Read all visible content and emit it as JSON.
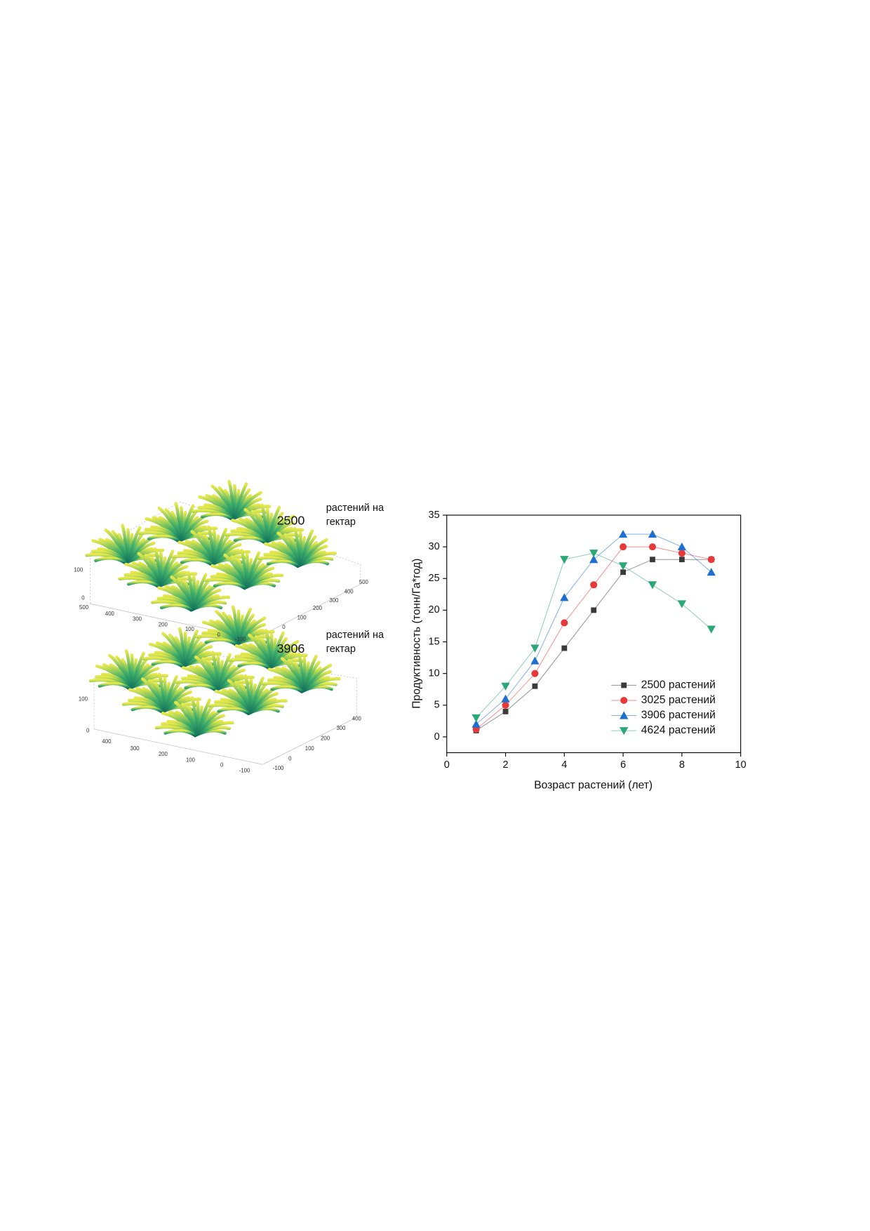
{
  "panels": [
    {
      "density": "2500",
      "label": [
        "растений на",
        "гектар"
      ],
      "zticks": [
        100,
        0
      ],
      "xticks": [
        500,
        400,
        300,
        200,
        100,
        0,
        -100
      ],
      "yticks": [
        0,
        100,
        200,
        300,
        400,
        500
      ]
    },
    {
      "density": "3906",
      "label": [
        "растений на",
        "гектар"
      ],
      "zticks": [
        100,
        0
      ],
      "xticks": [
        400,
        300,
        200,
        100,
        0,
        -100
      ],
      "yticks": [
        -100,
        0,
        100,
        200,
        300,
        400
      ]
    }
  ],
  "chart_data": {
    "type": "line",
    "x_label": "Возраст растений (лет)",
    "y_label": "Продуктивность (тонн/Га*год)",
    "x": [
      1,
      2,
      3,
      4,
      5,
      6,
      7,
      8,
      9
    ],
    "series": [
      {
        "name": "2500 растений",
        "color": "#3a3a3a",
        "marker": "square",
        "values": [
          1,
          4,
          8,
          14,
          20,
          26,
          28,
          28,
          28
        ]
      },
      {
        "name": "3025 растений",
        "color": "#e8393a",
        "marker": "circle",
        "values": [
          1.2,
          5,
          10,
          18,
          24,
          30,
          30,
          29,
          28
        ]
      },
      {
        "name": "3906 растений",
        "color": "#1f6fd1",
        "marker": "triangle-up",
        "values": [
          2,
          6,
          12,
          22,
          28,
          32,
          32,
          30,
          26
        ]
      },
      {
        "name": "4624 растений",
        "color": "#2aa876",
        "marker": "triangle-down",
        "values": [
          3,
          8,
          14,
          28,
          29,
          27,
          24,
          21,
          17
        ]
      }
    ],
    "xlim": [
      0,
      10
    ],
    "xticks": [
      0,
      2,
      4,
      6,
      8,
      10
    ],
    "ylim": [
      -2.5,
      35
    ],
    "yticks": [
      0,
      5,
      10,
      15,
      20,
      25,
      30,
      35
    ],
    "legend": "lower right"
  }
}
